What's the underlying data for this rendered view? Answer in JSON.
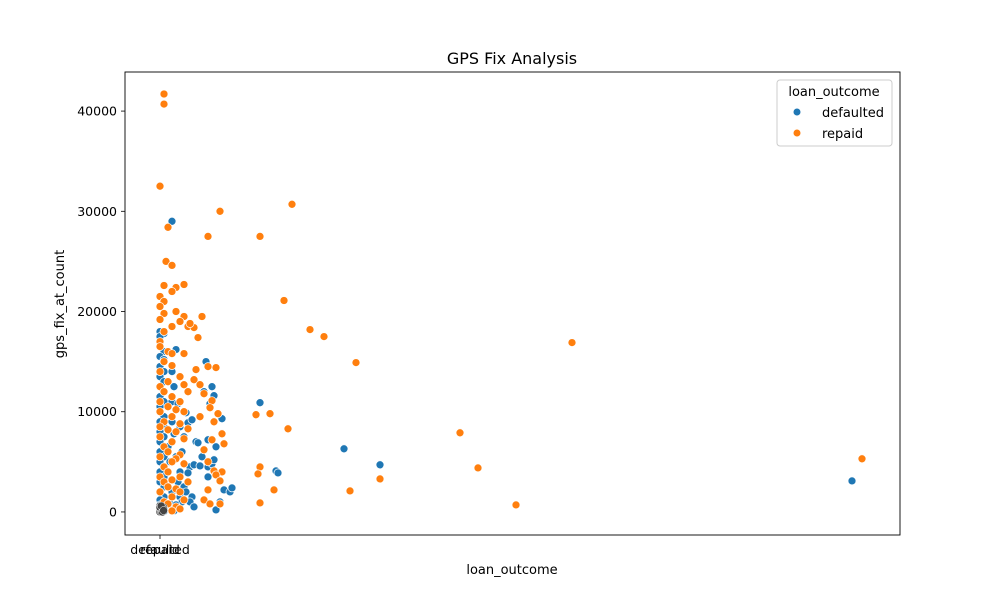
{
  "chart_data": {
    "type": "scatter",
    "title": "GPS Fix Analysis",
    "xlabel": "loan_outcome",
    "ylabel": "gps_fix_at_count",
    "ylim": [
      -2300,
      43900
    ],
    "y_ticks": [
      0,
      10000,
      20000,
      30000,
      40000
    ],
    "y_tick_labels": [
      "0",
      "10000",
      "20000",
      "30000",
      "40000"
    ],
    "x_tick_labels": [
      "defaulted",
      "repaid"
    ],
    "grid": false,
    "legend": {
      "title": "loan_outcome",
      "placement": "top-right"
    },
    "series": [
      {
        "name": "defaulted",
        "color": "#1f77b4",
        "points": [
          [
            0.0,
            18000
          ],
          [
            0.1,
            17800
          ],
          [
            0.0,
            17500
          ],
          [
            0.0,
            16500
          ],
          [
            0.1,
            16000
          ],
          [
            0.0,
            15500
          ],
          [
            0.1,
            15200
          ],
          [
            0.0,
            14500
          ],
          [
            0.1,
            14000
          ],
          [
            0.0,
            13500
          ],
          [
            0.1,
            13000
          ],
          [
            0.0,
            12500
          ],
          [
            0.1,
            12000
          ],
          [
            0.0,
            11500
          ],
          [
            0.1,
            11000
          ],
          [
            0.0,
            10500
          ],
          [
            0.0,
            10000
          ],
          [
            0.1,
            9500
          ],
          [
            0.0,
            9000
          ],
          [
            0.1,
            8500
          ],
          [
            0.0,
            8000
          ],
          [
            0.1,
            7500
          ],
          [
            0.0,
            7000
          ],
          [
            0.1,
            6500
          ],
          [
            0.0,
            6000
          ],
          [
            0.1,
            5500
          ],
          [
            0.0,
            5000
          ],
          [
            0.1,
            4500
          ],
          [
            0.0,
            4000
          ],
          [
            0.1,
            3500
          ],
          [
            0.0,
            3000
          ],
          [
            0.1,
            2500
          ],
          [
            0.0,
            2000
          ],
          [
            0.1,
            1500
          ],
          [
            0.0,
            1200
          ],
          [
            0.1,
            900
          ],
          [
            0.0,
            700
          ],
          [
            0.1,
            500
          ],
          [
            0.0,
            350
          ],
          [
            0.1,
            200
          ],
          [
            0.0,
            100
          ],
          [
            0.1,
            50
          ],
          [
            0.2,
            400
          ],
          [
            0.25,
            800
          ],
          [
            0.3,
            29000
          ],
          [
            0.3,
            14000
          ],
          [
            0.35,
            12500
          ],
          [
            0.4,
            16200
          ],
          [
            0.3,
            11000
          ],
          [
            0.45,
            10800
          ],
          [
            0.5,
            8500
          ],
          [
            0.35,
            7800
          ],
          [
            0.6,
            7500
          ],
          [
            0.55,
            6000
          ],
          [
            0.4,
            5500
          ],
          [
            0.5,
            4000
          ],
          [
            0.45,
            3000
          ],
          [
            0.6,
            2500
          ],
          [
            0.3,
            2000
          ],
          [
            0.5,
            1500
          ],
          [
            0.55,
            1000
          ],
          [
            0.4,
            700
          ],
          [
            0.45,
            400
          ],
          [
            0.3,
            200
          ],
          [
            0.35,
            100
          ],
          [
            0.2,
            6500
          ],
          [
            0.25,
            5000
          ],
          [
            0.3,
            9000
          ],
          [
            0.65,
            9900
          ],
          [
            0.7,
            8900
          ],
          [
            0.75,
            4500
          ],
          [
            0.8,
            9200
          ],
          [
            0.9,
            7000
          ],
          [
            0.85,
            4700
          ],
          [
            0.95,
            6900
          ],
          [
            0.7,
            3900
          ],
          [
            0.65,
            2000
          ],
          [
            0.8,
            1500
          ],
          [
            0.75,
            1000
          ],
          [
            0.85,
            500
          ],
          [
            1.0,
            4600
          ],
          [
            1.05,
            5500
          ],
          [
            1.15,
            15000
          ],
          [
            1.1,
            12000
          ],
          [
            1.2,
            4500
          ],
          [
            1.25,
            10800
          ],
          [
            1.3,
            12500
          ],
          [
            1.35,
            11600
          ],
          [
            1.2,
            7200
          ],
          [
            1.3,
            4800
          ],
          [
            1.4,
            6500
          ],
          [
            1.5,
            1000
          ],
          [
            1.55,
            9300
          ],
          [
            1.35,
            5200
          ],
          [
            1.2,
            3500
          ],
          [
            1.6,
            2200
          ],
          [
            1.75,
            2000
          ],
          [
            1.8,
            2400
          ],
          [
            1.25,
            800
          ],
          [
            1.4,
            200
          ],
          [
            1.1,
            1200
          ],
          [
            2.5,
            10900
          ],
          [
            2.9,
            4100
          ],
          [
            2.95,
            3900
          ],
          [
            4.6,
            6300
          ],
          [
            5.5,
            4700
          ],
          [
            17.3,
            3100
          ]
        ]
      },
      {
        "name": "repaid",
        "color": "#ff7f0e",
        "points": [
          [
            0.1,
            41700
          ],
          [
            0.1,
            40700
          ],
          [
            0.0,
            32500
          ],
          [
            0.2,
            28400
          ],
          [
            0.15,
            25000
          ],
          [
            0.3,
            24600
          ],
          [
            0.1,
            22600
          ],
          [
            0.4,
            22400
          ],
          [
            0.6,
            22700
          ],
          [
            0.3,
            22000
          ],
          [
            0.0,
            21500
          ],
          [
            0.1,
            21000
          ],
          [
            0.0,
            20500
          ],
          [
            0.4,
            20000
          ],
          [
            0.6,
            19500
          ],
          [
            0.1,
            19800
          ],
          [
            0.0,
            19200
          ],
          [
            0.5,
            19000
          ],
          [
            0.3,
            18500
          ],
          [
            0.1,
            18000
          ],
          [
            0.7,
            18500
          ],
          [
            0.0,
            17000
          ],
          [
            0.0,
            16500
          ],
          [
            0.2,
            16000
          ],
          [
            0.3,
            15800
          ],
          [
            0.6,
            15800
          ],
          [
            0.1,
            15000
          ],
          [
            0.3,
            14600
          ],
          [
            0.0,
            14000
          ],
          [
            0.5,
            13500
          ],
          [
            0.2,
            13000
          ],
          [
            0.6,
            12700
          ],
          [
            0.0,
            12500
          ],
          [
            0.1,
            12000
          ],
          [
            0.7,
            12000
          ],
          [
            0.3,
            11500
          ],
          [
            0.0,
            11000
          ],
          [
            0.5,
            11000
          ],
          [
            0.2,
            10500
          ],
          [
            0.4,
            10200
          ],
          [
            0.0,
            10000
          ],
          [
            0.6,
            10000
          ],
          [
            0.3,
            9500
          ],
          [
            0.1,
            9000
          ],
          [
            0.5,
            8800
          ],
          [
            0.0,
            8500
          ],
          [
            0.2,
            8200
          ],
          [
            0.7,
            8300
          ],
          [
            0.4,
            8000
          ],
          [
            0.0,
            7500
          ],
          [
            0.3,
            7000
          ],
          [
            0.6,
            7300
          ],
          [
            0.1,
            6500
          ],
          [
            0.2,
            6000
          ],
          [
            0.5,
            5700
          ],
          [
            0.0,
            5500
          ],
          [
            0.4,
            5300
          ],
          [
            0.3,
            5000
          ],
          [
            0.1,
            4500
          ],
          [
            0.6,
            4800
          ],
          [
            0.2,
            4000
          ],
          [
            0.0,
            3500
          ],
          [
            0.5,
            3500
          ],
          [
            0.3,
            3200
          ],
          [
            0.1,
            3000
          ],
          [
            0.7,
            3000
          ],
          [
            0.2,
            2500
          ],
          [
            0.4,
            2300
          ],
          [
            0.0,
            2000
          ],
          [
            0.5,
            2000
          ],
          [
            0.3,
            1500
          ],
          [
            0.1,
            1000
          ],
          [
            0.6,
            1200
          ],
          [
            0.2,
            800
          ],
          [
            0.4,
            500
          ],
          [
            0.0,
            300
          ],
          [
            0.5,
            300
          ],
          [
            0.3,
            100
          ],
          [
            0.95,
            17400
          ],
          [
            0.85,
            18400
          ],
          [
            1.05,
            19500
          ],
          [
            0.75,
            18800
          ],
          [
            0.9,
            14200
          ],
          [
            1.2,
            14500
          ],
          [
            0.85,
            13200
          ],
          [
            1.0,
            12700
          ],
          [
            1.4,
            14400
          ],
          [
            1.1,
            11800
          ],
          [
            1.3,
            11100
          ],
          [
            1.25,
            10400
          ],
          [
            1.45,
            9800
          ],
          [
            1.0,
            9500
          ],
          [
            1.35,
            9000
          ],
          [
            1.55,
            7800
          ],
          [
            1.6,
            6800
          ],
          [
            1.3,
            7200
          ],
          [
            1.1,
            6200
          ],
          [
            1.2,
            5000
          ],
          [
            1.35,
            4100
          ],
          [
            1.55,
            4000
          ],
          [
            1.4,
            3700
          ],
          [
            1.5,
            3100
          ],
          [
            1.2,
            2200
          ],
          [
            1.1,
            1200
          ],
          [
            1.25,
            800
          ],
          [
            1.5,
            800
          ],
          [
            1.2,
            27500
          ],
          [
            1.5,
            30000
          ],
          [
            2.5,
            27500
          ],
          [
            3.3,
            30700
          ],
          [
            3.1,
            21100
          ],
          [
            3.75,
            18200
          ],
          [
            4.1,
            17500
          ],
          [
            4.9,
            14900
          ],
          [
            2.4,
            9700
          ],
          [
            2.75,
            9800
          ],
          [
            3.2,
            8300
          ],
          [
            2.5,
            4500
          ],
          [
            2.45,
            3800
          ],
          [
            2.5,
            900
          ],
          [
            2.85,
            2200
          ],
          [
            4.75,
            2100
          ],
          [
            5.5,
            3300
          ],
          [
            7.5,
            7900
          ],
          [
            7.95,
            4400
          ],
          [
            8.9,
            700
          ],
          [
            10.3,
            16900
          ],
          [
            17.55,
            5300
          ]
        ]
      }
    ]
  }
}
